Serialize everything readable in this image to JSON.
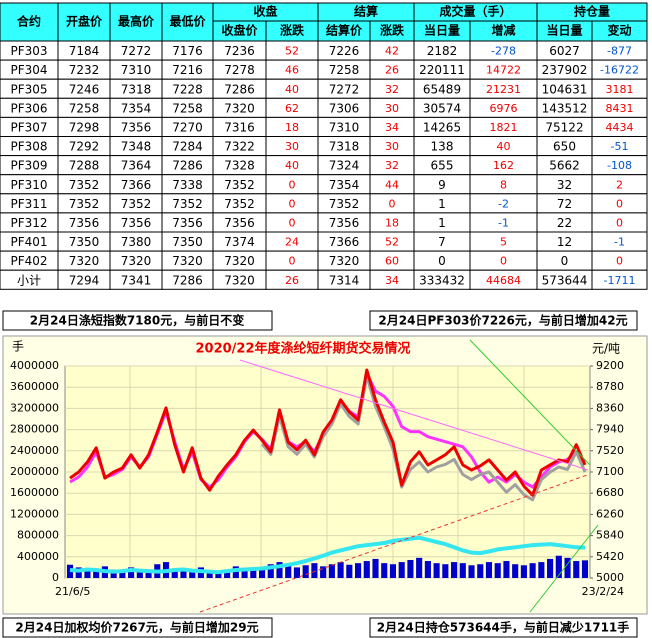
{
  "table": {
    "header_top": [
      "合约",
      "开盘价",
      "最高价",
      "最低价",
      "收盘",
      "结算",
      "成交量（手）",
      "持仓量"
    ],
    "header_sub": [
      "收盘价",
      "涨跌",
      "结算价",
      "涨跌",
      "当日量",
      "增减",
      "当日量",
      "变动"
    ],
    "rows": [
      [
        "PF303",
        7184,
        7272,
        7176,
        7236,
        52,
        7226,
        42,
        2182,
        -278,
        6027,
        -877
      ],
      [
        "PF304",
        7232,
        7310,
        7216,
        7278,
        46,
        7258,
        26,
        220111,
        14722,
        237902,
        -16722
      ],
      [
        "PF305",
        7246,
        7318,
        7228,
        7286,
        40,
        7272,
        32,
        65489,
        21231,
        104631,
        3181
      ],
      [
        "PF306",
        7258,
        7354,
        7258,
        7320,
        62,
        7306,
        30,
        30574,
        6976,
        143512,
        8431
      ],
      [
        "PF307",
        7298,
        7356,
        7270,
        7316,
        18,
        7310,
        34,
        14265,
        1821,
        75122,
        4434
      ],
      [
        "PF308",
        7292,
        7348,
        7284,
        7322,
        30,
        7318,
        30,
        138,
        40,
        650,
        -51
      ],
      [
        "PF309",
        7288,
        7364,
        7286,
        7328,
        40,
        7324,
        32,
        655,
        162,
        5662,
        -108
      ],
      [
        "PF310",
        7352,
        7366,
        7338,
        7352,
        0,
        7354,
        44,
        9,
        8,
        32,
        2
      ],
      [
        "PF311",
        7352,
        7352,
        7352,
        7352,
        0,
        7352,
        0,
        1,
        -2,
        72,
        0
      ],
      [
        "PF312",
        7356,
        7356,
        7356,
        7356,
        0,
        7356,
        18,
        1,
        -1,
        22,
        0
      ],
      [
        "PF401",
        7350,
        7380,
        7350,
        7374,
        24,
        7366,
        52,
        7,
        5,
        12,
        -1
      ],
      [
        "PF402",
        7320,
        7320,
        7320,
        7320,
        0,
        7320,
        60,
        0,
        0,
        0,
        0
      ],
      [
        "小计",
        7294,
        7341,
        7286,
        7320,
        26,
        7314,
        34,
        333432,
        44684,
        573644,
        -1711
      ]
    ]
  },
  "notes": {
    "top_left": "2月24日涤短指数7180元，与前日不变",
    "top_right": "2月24日PF303价7226元，与前日增加42元",
    "bottom_left": "2月24日加权均价7267元，与前日增加29元",
    "bottom_right": "2月24日持仓573644手，与前日减少1711手"
  },
  "chart_data": {
    "type": "combo",
    "title": "2020/22年度涤纶短纤期货交易情况",
    "y_label": "手",
    "y2_label": "元/吨",
    "categories": [
      "21/6/5",
      null,
      null,
      null,
      null,
      null,
      null,
      null,
      null,
      null,
      null,
      null,
      null,
      null,
      null,
      null,
      null,
      null,
      null,
      null,
      null,
      null,
      null,
      null,
      null,
      null,
      null,
      null,
      null,
      null,
      null,
      null,
      null,
      null,
      null,
      null,
      null,
      null,
      null,
      null,
      null,
      null,
      null,
      null,
      null,
      null,
      null,
      null,
      null,
      null,
      null,
      null,
      null,
      null,
      null,
      null,
      null,
      null,
      null,
      "23/2/24"
    ],
    "ylim": [
      0,
      4000000
    ],
    "yticks": [
      0,
      400000,
      800000,
      1200000,
      1600000,
      2000000,
      2400000,
      2800000,
      3200000,
      3600000,
      4000000
    ],
    "y2lim": [
      5000,
      9200
    ],
    "y2ticks": [
      5000,
      5420,
      5840,
      6260,
      6680,
      7100,
      7520,
      7940,
      8360,
      8780,
      9200
    ],
    "grid": true,
    "series": [
      {
        "type": "bar",
        "color": "#0000cc",
        "values": [
          250000,
          200000,
          150000,
          180000,
          220000,
          160000,
          140000,
          200000,
          170000,
          150000,
          260000,
          300000,
          180000,
          160000,
          140000,
          200000,
          150000,
          130000,
          160000,
          220000,
          180000,
          150000,
          200000,
          260000,
          300000,
          250000,
          200000,
          240000,
          280000,
          220000,
          260000,
          300000,
          250000,
          280000,
          320000,
          360000,
          280000,
          260000,
          300000,
          340000,
          380000,
          320000,
          280000,
          260000,
          300000,
          280000,
          240000,
          260000,
          300000,
          280000,
          320000,
          260000,
          240000,
          280000,
          300000,
          360000,
          420000,
          380000,
          320000,
          333432
        ]
      },
      {
        "type": "line",
        "color": "#33e6f0",
        "width": 4,
        "values": [
          150000,
          140000,
          160000,
          150000,
          130000,
          120000,
          130000,
          150000,
          140000,
          130000,
          120000,
          130000,
          150000,
          160000,
          140000,
          130000,
          120000,
          110000,
          130000,
          150000,
          160000,
          170000,
          180000,
          200000,
          220000,
          250000,
          280000,
          320000,
          370000,
          420000,
          480000,
          520000,
          560000,
          600000,
          620000,
          640000,
          660000,
          700000,
          720000,
          740000,
          760000,
          720000,
          680000,
          640000,
          580000,
          520000,
          480000,
          470000,
          500000,
          540000,
          560000,
          580000,
          600000,
          620000,
          630000,
          640000,
          620000,
          600000,
          580000,
          573644
        ]
      },
      {
        "type": "line",
        "color": "#ff33ff",
        "width": 3,
        "axis": "y2",
        "values": [
          6900,
          7000,
          7200,
          7500,
          7000,
          7050,
          7150,
          7400,
          7200,
          7400,
          7850,
          8300,
          7700,
          7150,
          7500,
          6950,
          6800,
          6950,
          7200,
          7400,
          7700,
          7900,
          7750,
          7550,
          8250,
          7700,
          7600,
          7700,
          7500,
          7850,
          8100,
          8500,
          8300,
          8200,
          9050,
          8700,
          8600,
          8400,
          8000,
          7900,
          7900,
          7800,
          7750,
          7700,
          7650,
          7600,
          7400,
          7100,
          6900,
          7000,
          6900,
          7050,
          6900,
          6800,
          7000,
          7200,
          7300,
          7350,
          7500,
          7300
        ]
      },
      {
        "type": "line",
        "color": "#a0a0a0",
        "width": 3,
        "axis": "y2",
        "values": [
          null,
          null,
          null,
          null,
          null,
          null,
          null,
          null,
          null,
          null,
          null,
          null,
          null,
          null,
          null,
          null,
          null,
          null,
          null,
          null,
          null,
          null,
          7650,
          7450,
          8200,
          7600,
          7450,
          7650,
          7400,
          7800,
          8050,
          8450,
          8200,
          8050,
          9000,
          8400,
          8000,
          7550,
          6800,
          7150,
          7300,
          7100,
          7200,
          7250,
          7350,
          7050,
          6950,
          7050,
          7100,
          6900,
          6700,
          6850,
          6650,
          6550,
          6950,
          7100,
          7200,
          7150,
          7500,
          7100
        ]
      },
      {
        "type": "line",
        "color": "#ee0000",
        "width": 3,
        "axis": "y2",
        "values": [
          6980,
          7100,
          7300,
          7580,
          6980,
          7100,
          7180,
          7440,
          7180,
          7440,
          7890,
          8370,
          7640,
          7100,
          7580,
          6980,
          6740,
          7020,
          7240,
          7440,
          7730,
          7930,
          7730,
          7500,
          8330,
          7690,
          7540,
          7730,
          7440,
          7890,
          8130,
          8530,
          8290,
          8130,
          9120,
          8530,
          8090,
          7690,
          6840,
          7300,
          7500,
          7240,
          7340,
          7440,
          7600,
          7240,
          7140,
          7220,
          7340,
          7140,
          6940,
          7100,
          6820,
          6640,
          7140,
          7240,
          7340,
          7300,
          7640,
          7240
        ]
      }
    ]
  }
}
